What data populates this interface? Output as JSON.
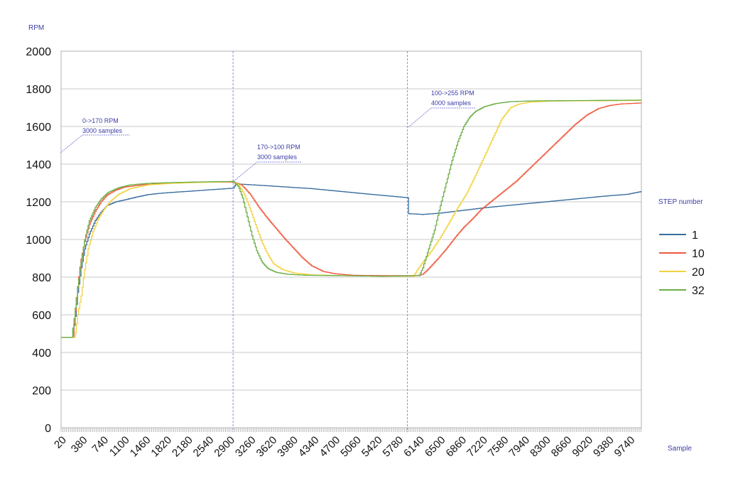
{
  "chart_data": {
    "type": "line",
    "title": "",
    "ylabel": "RPM",
    "xlabel": "Sample",
    "ylim": [
      0,
      2000
    ],
    "xlim": [
      20,
      9940
    ],
    "yticks": [
      "0",
      "200",
      "400",
      "600",
      "800",
      "1000",
      "1200",
      "1400",
      "1600",
      "1800",
      "2000"
    ],
    "xticks": [
      "20",
      "380",
      "740",
      "1100",
      "1460",
      "1820",
      "2180",
      "2540",
      "2900",
      "3260",
      "3620",
      "3980",
      "4340",
      "4700",
      "5060",
      "5420",
      "5780",
      "6140",
      "6500",
      "6860",
      "7220",
      "7580",
      "7940",
      "8300",
      "8660",
      "9020",
      "9380",
      "9740"
    ],
    "grid": "horizontal",
    "legend": {
      "title": "STEP number",
      "position": "right"
    },
    "vlines": [
      2960,
      5940
    ],
    "annotations": [
      {
        "line1": "0->170 RPM",
        "line2": "3000 samples"
      },
      {
        "line1": "170->100 RPM",
        "line2": "3000 samples"
      },
      {
        "line1": "100->255 RPM",
        "line2": "4000 samples"
      }
    ],
    "series": [
      {
        "name": "1",
        "color": "#3a6e9f",
        "step": 20,
        "points": [
          [
            20,
            480
          ],
          [
            200,
            480
          ],
          [
            250,
            560
          ],
          [
            300,
            720
          ],
          [
            360,
            850
          ],
          [
            420,
            950
          ],
          [
            500,
            1030
          ],
          [
            600,
            1100
          ],
          [
            700,
            1145
          ],
          [
            800,
            1180
          ],
          [
            950,
            1200
          ],
          [
            1100,
            1210
          ],
          [
            1300,
            1225
          ],
          [
            1500,
            1238
          ],
          [
            1700,
            1245
          ],
          [
            2000,
            1252
          ],
          [
            2300,
            1258
          ],
          [
            2600,
            1265
          ],
          [
            2960,
            1272
          ],
          [
            3000,
            1295
          ],
          [
            3300,
            1290
          ],
          [
            3800,
            1280
          ],
          [
            4300,
            1270
          ],
          [
            4800,
            1255
          ],
          [
            5300,
            1240
          ],
          [
            5940,
            1222
          ],
          [
            5960,
            1137
          ],
          [
            6200,
            1133
          ],
          [
            6500,
            1140
          ],
          [
            6900,
            1155
          ],
          [
            7300,
            1170
          ],
          [
            7800,
            1185
          ],
          [
            8300,
            1200
          ],
          [
            8800,
            1215
          ],
          [
            9300,
            1230
          ],
          [
            9700,
            1240
          ],
          [
            9940,
            1255
          ]
        ]
      },
      {
        "name": "10",
        "color": "#ee5a3f",
        "step": 20,
        "points": [
          [
            20,
            480
          ],
          [
            220,
            480
          ],
          [
            260,
            620
          ],
          [
            300,
            750
          ],
          [
            350,
            880
          ],
          [
            420,
            990
          ],
          [
            500,
            1080
          ],
          [
            600,
            1150
          ],
          [
            700,
            1200
          ],
          [
            800,
            1235
          ],
          [
            950,
            1262
          ],
          [
            1100,
            1278
          ],
          [
            1400,
            1290
          ],
          [
            1800,
            1298
          ],
          [
            2200,
            1302
          ],
          [
            2600,
            1305
          ],
          [
            2960,
            1305
          ],
          [
            3100,
            1290
          ],
          [
            3250,
            1240
          ],
          [
            3400,
            1170
          ],
          [
            3550,
            1110
          ],
          [
            3700,
            1055
          ],
          [
            3850,
            1000
          ],
          [
            4000,
            950
          ],
          [
            4150,
            900
          ],
          [
            4300,
            860
          ],
          [
            4500,
            830
          ],
          [
            4700,
            818
          ],
          [
            5000,
            810
          ],
          [
            5500,
            808
          ],
          [
            6100,
            808
          ],
          [
            6200,
            815
          ],
          [
            6300,
            845
          ],
          [
            6450,
            895
          ],
          [
            6600,
            950
          ],
          [
            6750,
            1010
          ],
          [
            6900,
            1065
          ],
          [
            7050,
            1110
          ],
          [
            7200,
            1160
          ],
          [
            7400,
            1210
          ],
          [
            7600,
            1260
          ],
          [
            7800,
            1310
          ],
          [
            8000,
            1370
          ],
          [
            8200,
            1430
          ],
          [
            8400,
            1490
          ],
          [
            8600,
            1550
          ],
          [
            8800,
            1610
          ],
          [
            9000,
            1660
          ],
          [
            9200,
            1695
          ],
          [
            9400,
            1712
          ],
          [
            9600,
            1720
          ],
          [
            9940,
            1725
          ]
        ]
      },
      {
        "name": "20",
        "color": "#f2d23c",
        "step": 20,
        "points": [
          [
            20,
            480
          ],
          [
            250,
            480
          ],
          [
            300,
            600
          ],
          [
            360,
            700
          ],
          [
            420,
            840
          ],
          [
            480,
            950
          ],
          [
            560,
            1040
          ],
          [
            650,
            1110
          ],
          [
            750,
            1160
          ],
          [
            850,
            1200
          ],
          [
            1000,
            1240
          ],
          [
            1200,
            1270
          ],
          [
            1500,
            1290
          ],
          [
            1900,
            1298
          ],
          [
            2300,
            1302
          ],
          [
            2700,
            1305
          ],
          [
            2960,
            1308
          ],
          [
            3050,
            1290
          ],
          [
            3150,
            1240
          ],
          [
            3250,
            1160
          ],
          [
            3350,
            1070
          ],
          [
            3450,
            985
          ],
          [
            3550,
            920
          ],
          [
            3650,
            870
          ],
          [
            3800,
            840
          ],
          [
            4000,
            822
          ],
          [
            4300,
            812
          ],
          [
            4800,
            808
          ],
          [
            5500,
            805
          ],
          [
            6040,
            805
          ],
          [
            6100,
            835
          ],
          [
            6200,
            880
          ],
          [
            6350,
            940
          ],
          [
            6500,
            1010
          ],
          [
            6650,
            1090
          ],
          [
            6800,
            1170
          ],
          [
            6950,
            1245
          ],
          [
            7100,
            1340
          ],
          [
            7250,
            1440
          ],
          [
            7400,
            1540
          ],
          [
            7550,
            1640
          ],
          [
            7700,
            1700
          ],
          [
            7850,
            1720
          ],
          [
            8050,
            1730
          ],
          [
            8400,
            1735
          ],
          [
            9940,
            1738
          ]
        ]
      },
      {
        "name": "32",
        "color": "#6aae45",
        "step": 20,
        "points": [
          [
            20,
            480
          ],
          [
            200,
            480
          ],
          [
            240,
            580
          ],
          [
            290,
            720
          ],
          [
            350,
            860
          ],
          [
            420,
            1000
          ],
          [
            500,
            1100
          ],
          [
            600,
            1170
          ],
          [
            700,
            1215
          ],
          [
            820,
            1250
          ],
          [
            1000,
            1275
          ],
          [
            1200,
            1290
          ],
          [
            1500,
            1298
          ],
          [
            1900,
            1302
          ],
          [
            2300,
            1305
          ],
          [
            2700,
            1307
          ],
          [
            2960,
            1308
          ],
          [
            3050,
            1280
          ],
          [
            3120,
            1220
          ],
          [
            3200,
            1120
          ],
          [
            3280,
            1020
          ],
          [
            3360,
            940
          ],
          [
            3450,
            880
          ],
          [
            3550,
            845
          ],
          [
            3700,
            825
          ],
          [
            3900,
            815
          ],
          [
            4200,
            810
          ],
          [
            4800,
            808
          ],
          [
            5500,
            805
          ],
          [
            6140,
            808
          ],
          [
            6200,
            850
          ],
          [
            6300,
            950
          ],
          [
            6400,
            1050
          ],
          [
            6500,
            1180
          ],
          [
            6600,
            1300
          ],
          [
            6700,
            1420
          ],
          [
            6800,
            1520
          ],
          [
            6900,
            1600
          ],
          [
            7000,
            1650
          ],
          [
            7100,
            1680
          ],
          [
            7250,
            1705
          ],
          [
            7450,
            1722
          ],
          [
            7700,
            1732
          ],
          [
            8100,
            1736
          ],
          [
            9940,
            1740
          ]
        ]
      }
    ]
  }
}
